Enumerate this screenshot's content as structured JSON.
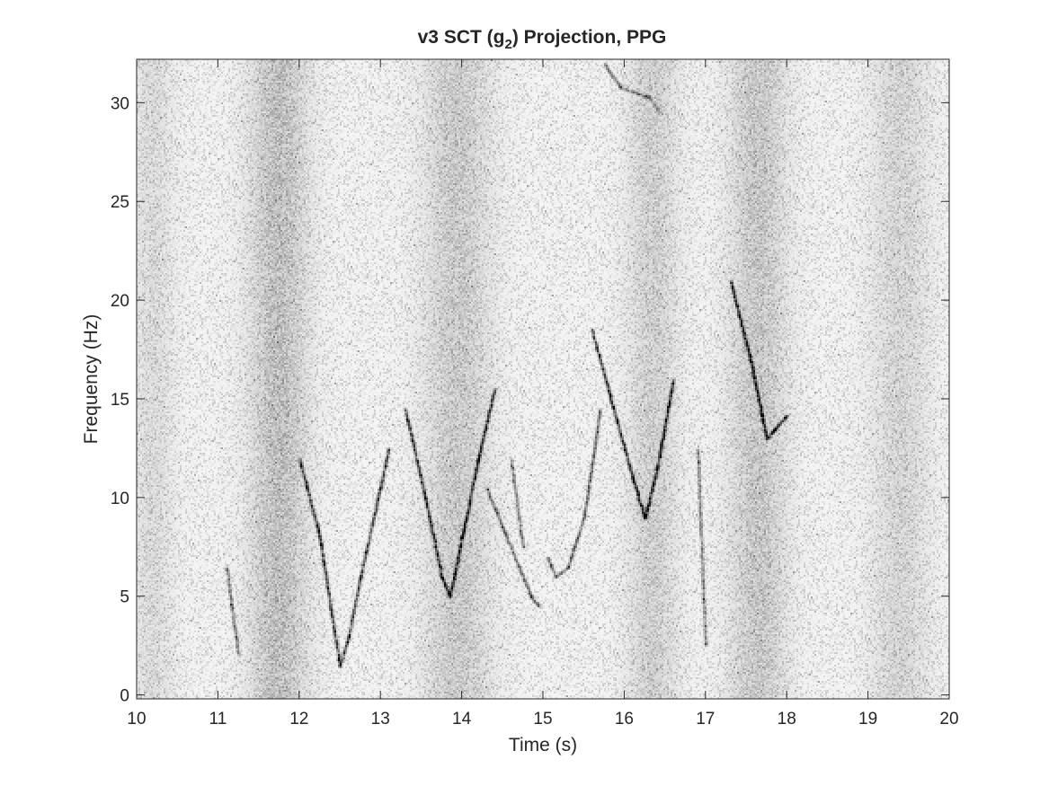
{
  "chart_data": {
    "type": "heatmap",
    "title": {
      "prefix": "v3 SCT (g",
      "subscript": "2",
      "suffix": ") Projection, PPG"
    },
    "xlabel": "Time (s)",
    "ylabel": "Frequency (Hz)",
    "xlim": [
      10,
      20
    ],
    "ylim": [
      -0.2,
      32.2
    ],
    "xticks": [
      10,
      11,
      12,
      13,
      14,
      15,
      16,
      17,
      18,
      19,
      20
    ],
    "yticks": [
      0,
      5,
      10,
      15,
      20,
      25,
      30
    ],
    "grid": false,
    "colormap": "gray-reversed",
    "colors": {
      "background": "#ffffff",
      "axis": "#262626",
      "ink": "#000000"
    },
    "ridges": [
      {
        "points": [
          [
            11.1,
            6.5
          ],
          [
            11.25,
            2.0
          ]
        ],
        "intensity": 0.55
      },
      {
        "points": [
          [
            12.0,
            12.0
          ],
          [
            12.25,
            8.0
          ],
          [
            12.4,
            4.0
          ],
          [
            12.5,
            1.5
          ],
          [
            12.6,
            3.0
          ],
          [
            12.75,
            6.0
          ],
          [
            13.1,
            12.5
          ]
        ],
        "intensity": 0.75
      },
      {
        "points": [
          [
            13.3,
            14.5
          ],
          [
            13.55,
            10.0
          ],
          [
            13.75,
            6.0
          ],
          [
            13.85,
            5.0
          ],
          [
            14.0,
            8.0
          ],
          [
            14.2,
            12.0
          ],
          [
            14.4,
            15.5
          ]
        ],
        "intensity": 0.8
      },
      {
        "points": [
          [
            14.3,
            10.5
          ],
          [
            14.55,
            8.0
          ],
          [
            14.7,
            6.5
          ],
          [
            14.85,
            5.0
          ],
          [
            14.95,
            4.5
          ]
        ],
        "intensity": 0.6
      },
      {
        "points": [
          [
            14.6,
            12.0
          ],
          [
            14.7,
            9.0
          ],
          [
            14.75,
            7.5
          ]
        ],
        "intensity": 0.5
      },
      {
        "points": [
          [
            15.05,
            7.0
          ],
          [
            15.15,
            6.0
          ],
          [
            15.3,
            6.5
          ],
          [
            15.5,
            9.0
          ],
          [
            15.7,
            14.5
          ]
        ],
        "intensity": 0.6
      },
      {
        "points": [
          [
            15.6,
            18.5
          ],
          [
            15.9,
            14.0
          ],
          [
            16.1,
            11.0
          ],
          [
            16.25,
            9.0
          ],
          [
            16.4,
            11.5
          ],
          [
            16.6,
            16.0
          ]
        ],
        "intensity": 0.85
      },
      {
        "points": [
          [
            16.9,
            12.5
          ],
          [
            16.95,
            7.0
          ],
          [
            17.0,
            2.5
          ]
        ],
        "intensity": 0.45
      },
      {
        "points": [
          [
            17.3,
            21.0
          ],
          [
            17.55,
            17.0
          ],
          [
            17.7,
            14.0
          ],
          [
            17.75,
            13.0
          ],
          [
            17.85,
            13.5
          ],
          [
            18.0,
            14.2
          ]
        ],
        "intensity": 0.85
      },
      {
        "points": [
          [
            15.75,
            32.0
          ],
          [
            15.95,
            30.8
          ],
          [
            16.3,
            30.3
          ]
        ],
        "intensity": 0.55
      },
      {
        "points": [
          [
            16.3,
            30.3
          ],
          [
            16.45,
            29.5
          ]
        ],
        "intensity": 0.35
      }
    ],
    "bands": [
      {
        "x": 11.75,
        "width": 0.35,
        "intensity": 0.18
      },
      {
        "x": 13.95,
        "width": 0.4,
        "intensity": 0.14
      },
      {
        "x": 16.35,
        "width": 0.3,
        "intensity": 0.12
      },
      {
        "x": 17.65,
        "width": 0.35,
        "intensity": 0.15
      },
      {
        "x": 10.2,
        "width": 0.25,
        "intensity": 0.08
      },
      {
        "x": 19.4,
        "width": 0.35,
        "intensity": 0.1
      }
    ]
  }
}
